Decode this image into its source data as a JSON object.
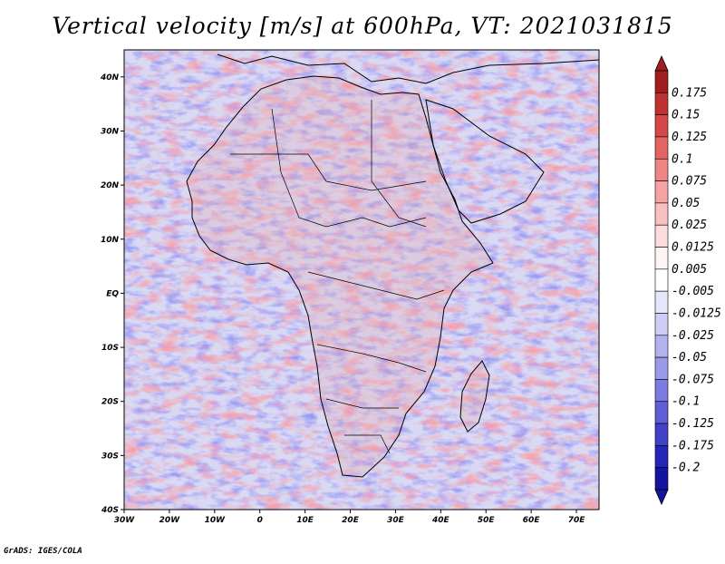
{
  "title": "Vertical velocity [m/s] at 600hPa, VT: 2021031815",
  "footer": "GrADS: IGES/COLA",
  "map": {
    "lon_range": [
      -30,
      75
    ],
    "lat_range": [
      -40,
      45
    ],
    "lon_ticks": [
      {
        "value": -30,
        "label": "30W"
      },
      {
        "value": -20,
        "label": "20W"
      },
      {
        "value": -10,
        "label": "10W"
      },
      {
        "value": 0,
        "label": "0"
      },
      {
        "value": 10,
        "label": "10E"
      },
      {
        "value": 20,
        "label": "20E"
      },
      {
        "value": 30,
        "label": "30E"
      },
      {
        "value": 40,
        "label": "40E"
      },
      {
        "value": 50,
        "label": "50E"
      },
      {
        "value": 60,
        "label": "60E"
      },
      {
        "value": 70,
        "label": "70E"
      }
    ],
    "lat_ticks": [
      {
        "value": 40,
        "label": "40N"
      },
      {
        "value": 30,
        "label": "30N"
      },
      {
        "value": 20,
        "label": "20N"
      },
      {
        "value": 10,
        "label": "10N"
      },
      {
        "value": 0,
        "label": "EQ"
      },
      {
        "value": -10,
        "label": "10S"
      },
      {
        "value": -20,
        "label": "20S"
      },
      {
        "value": -30,
        "label": "30S"
      },
      {
        "value": -40,
        "label": "40S"
      }
    ]
  },
  "colorbar": {
    "levels": [
      "0.175",
      "0.15",
      "0.125",
      "0.1",
      "0.075",
      "0.05",
      "0.025",
      "0.0125",
      "0.005",
      "-0.005",
      "-0.0125",
      "-0.025",
      "-0.05",
      "-0.075",
      "-0.1",
      "-0.125",
      "-0.175",
      "-0.2"
    ],
    "colors": [
      "#a01e1e",
      "#c03232",
      "#d64848",
      "#e46464",
      "#ee8484",
      "#f4a2a2",
      "#f8c0c0",
      "#fcdcdc",
      "#fff2f2",
      "#ffffff",
      "#e6e6fa",
      "#cdcdf5",
      "#b2b2ef",
      "#9a9ae8",
      "#7c7ce0",
      "#5e5ed6",
      "#4040c8",
      "#2626b6",
      "#1414a0"
    ]
  }
}
